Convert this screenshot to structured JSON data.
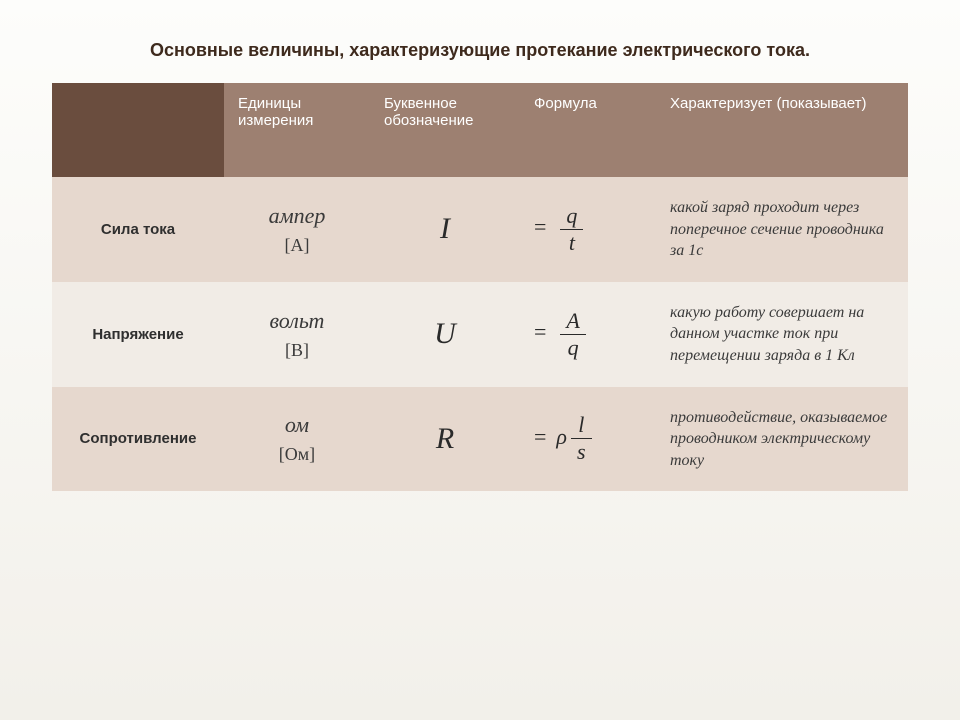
{
  "title": "Основные величины, характеризующие протекание электрического тока.",
  "colors": {
    "header_corner": "#6a4d3e",
    "header_cell": "#9d8071",
    "row_a": "#e6d8ce",
    "row_b": "#f1ece6",
    "row_c": "#e6d8ce",
    "text": "#3a3a3a"
  },
  "columns": [
    "",
    "Единицы измерения",
    "Буквенное обозначение",
    "Формула",
    "Характеризует (показывает)"
  ],
  "rows": [
    {
      "name": "Сила тока",
      "unit_word": "ампер",
      "unit_bracket": "[А]",
      "symbol": "I",
      "formula": {
        "eq": "=",
        "rho": "",
        "num": "q",
        "den": "t"
      },
      "desc": "какой заряд проходит через поперечное сечение проводника за 1с"
    },
    {
      "name": "Напряжение",
      "unit_word": "вольт",
      "unit_bracket": "[В]",
      "symbol": "U",
      "formula": {
        "eq": "=",
        "rho": "",
        "num": "A",
        "den": "q"
      },
      "desc": "какую  работу совершает на данном участке ток при перемещении заряда в 1 Кл"
    },
    {
      "name": "Сопротивление",
      "unit_word": "ом",
      "unit_bracket": "[Ом]",
      "symbol": "R",
      "formula": {
        "eq": "=",
        "rho": "ρ",
        "num": "l",
        "den": "s"
      },
      "desc": "противодействие, оказываемое проводником электрическому току"
    }
  ]
}
